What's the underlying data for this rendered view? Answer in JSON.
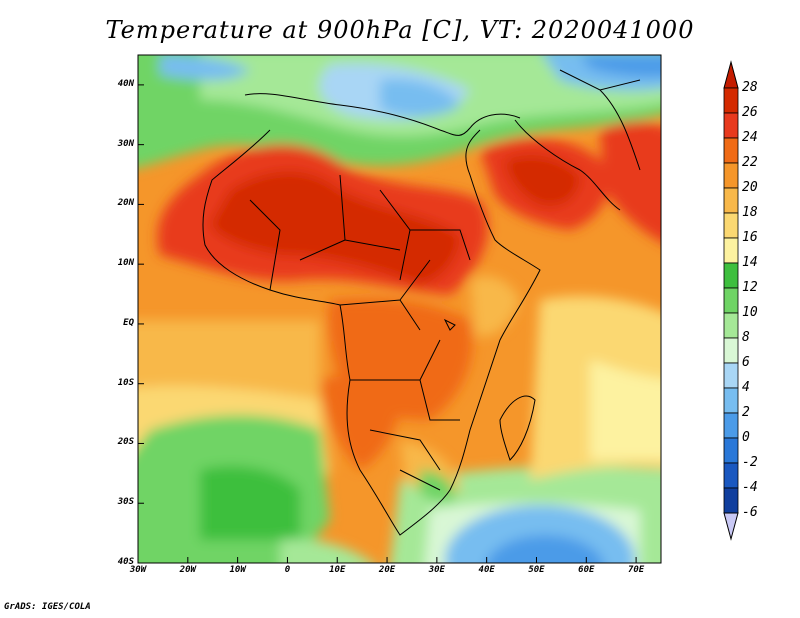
{
  "title": "Temperature at 900hPa [C], VT: 2020041000",
  "credit": "GrADS: IGES/COLA",
  "axes": {
    "lat_labels": [
      "40N",
      "30N",
      "20N",
      "10N",
      "EQ",
      "10S",
      "20S",
      "30S",
      "40S"
    ],
    "lat_values": [
      40,
      30,
      20,
      10,
      0,
      -10,
      -20,
      -30,
      -40
    ],
    "lon_labels": [
      "30W",
      "20W",
      "10W",
      "0",
      "10E",
      "20E",
      "30E",
      "40E",
      "50E",
      "60E",
      "70E"
    ],
    "lon_values": [
      -30,
      -20,
      -10,
      0,
      10,
      20,
      30,
      40,
      50,
      60,
      70
    ],
    "lon_range": [
      -30,
      75
    ],
    "lat_range": [
      -40,
      45
    ]
  },
  "colorbar": {
    "labels": [
      "28",
      "26",
      "24",
      "22",
      "20",
      "18",
      "16",
      "14",
      "12",
      "10",
      "8",
      "6",
      "4",
      "2",
      "0",
      "-2",
      "-4",
      "-6"
    ],
    "colors": [
      "#d42a00",
      "#e83a1e",
      "#f06b16",
      "#f5962a",
      "#f8b84a",
      "#fbd872",
      "#fdf2a0",
      "#3ebf3e",
      "#6fd465",
      "#a5e897",
      "#d9f7d5",
      "#a9d6f5",
      "#77bdf0",
      "#4b9be8",
      "#2a78d8",
      "#1a58c0",
      "#113f9e",
      "#0b1e6e"
    ],
    "cap_top_color": "#c41c00",
    "cap_bottom_color": "#c9c9f5"
  },
  "field": {
    "description_values_degC": {
      "sahara_max": 27,
      "arabia_max": 27,
      "med_min": 7,
      "south_atlantic_min": 12,
      "south_indian_min": 2
    }
  }
}
